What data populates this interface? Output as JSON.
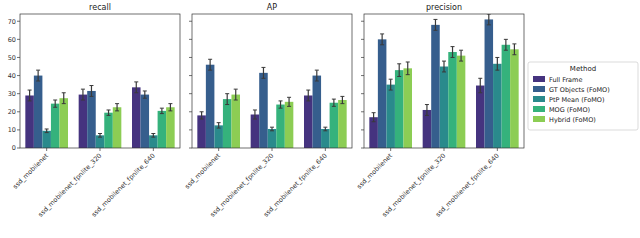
{
  "chart_data": [
    {
      "type": "bar",
      "title": "recall",
      "categories": [
        "ssd_mobilenet",
        "ssd_mobilenet_fpnlite_320",
        "ssd_mobilenet_fpnlite_640"
      ],
      "series": [
        {
          "name": "Full Frame",
          "color": "#45337f",
          "values": [
            29,
            29.5,
            33.5
          ],
          "errors": [
            3,
            3,
            3
          ]
        },
        {
          "name": "GT Objects (FoMO)",
          "color": "#365e8d",
          "values": [
            40,
            31.5,
            29.5
          ],
          "errors": [
            3,
            3,
            2
          ]
        },
        {
          "name": "PtP Mean (FoMO)",
          "color": "#2a8a8c",
          "values": [
            9.5,
            7,
            7
          ],
          "errors": [
            1,
            1,
            1
          ]
        },
        {
          "name": "MOG (FoMO)",
          "color": "#35b27c",
          "values": [
            24.5,
            19.5,
            20.5
          ],
          "errors": [
            2,
            1.5,
            1.5
          ]
        },
        {
          "name": "Hybrid (FoMO)",
          "color": "#8ccd54",
          "values": [
            27.5,
            22.5,
            22.5
          ],
          "errors": [
            3,
            2,
            2
          ]
        }
      ],
      "ylim": [
        0,
        74
      ],
      "yticks": [
        0,
        10,
        20,
        30,
        40,
        50,
        60,
        70
      ],
      "grid": false,
      "tick_labels": true
    },
    {
      "type": "bar",
      "title": "AP",
      "categories": [
        "ssd_mobilenet",
        "ssd_mobilenet_fpnlite_320",
        "ssd_mobilenet_fpnlite_640"
      ],
      "series": [
        {
          "name": "Full Frame",
          "color": "#45337f",
          "values": [
            18,
            18.5,
            29
          ],
          "errors": [
            2,
            2.5,
            3
          ]
        },
        {
          "name": "GT Objects (FoMO)",
          "color": "#365e8d",
          "values": [
            46,
            41.5,
            40
          ],
          "errors": [
            3,
            3,
            3
          ]
        },
        {
          "name": "PtP Mean (FoMO)",
          "color": "#2a8a8c",
          "values": [
            12.5,
            10.5,
            10.5
          ],
          "errors": [
            1.5,
            1,
            1
          ]
        },
        {
          "name": "MOG (FoMO)",
          "color": "#35b27c",
          "values": [
            27,
            24,
            25
          ],
          "errors": [
            3,
            2,
            2
          ]
        },
        {
          "name": "Hybrid (FoMO)",
          "color": "#8ccd54",
          "values": [
            29.5,
            25.5,
            26.5
          ],
          "errors": [
            3,
            2.5,
            2
          ]
        }
      ],
      "ylim": [
        0,
        74
      ],
      "yticks": [
        0,
        10,
        20,
        30,
        40,
        50,
        60,
        70
      ],
      "grid": false,
      "tick_labels": "x"
    },
    {
      "type": "bar",
      "title": "precision",
      "legend_title": "Method",
      "categories": [
        "ssd_mobilenet",
        "ssd_mobilenet_fpnlite_320",
        "ssd_mobilenet_fpnlite_640"
      ],
      "series": [
        {
          "name": "Full Frame",
          "color": "#45337f",
          "values": [
            17,
            21,
            34.5
          ],
          "errors": [
            2.5,
            3,
            4
          ]
        },
        {
          "name": "GT Objects (FoMO)",
          "color": "#365e8d",
          "values": [
            60,
            68,
            71
          ],
          "errors": [
            3,
            3,
            3
          ]
        },
        {
          "name": "PtP Mean (FoMO)",
          "color": "#2a8a8c",
          "values": [
            35,
            45,
            46.5
          ],
          "errors": [
            3,
            3,
            3.5
          ]
        },
        {
          "name": "MOG (FoMO)",
          "color": "#35b27c",
          "values": [
            43,
            53,
            57
          ],
          "errors": [
            3.5,
            3,
            3
          ]
        },
        {
          "name": "Hybrid (FoMO)",
          "color": "#8ccd54",
          "values": [
            44,
            51,
            54.5
          ],
          "errors": [
            3.5,
            3,
            3
          ]
        }
      ],
      "ylim": [
        0,
        74
      ],
      "yticks": [
        0,
        10,
        20,
        30,
        40,
        50,
        60,
        70
      ],
      "grid": false,
      "tick_labels": "x",
      "legend": "right"
    }
  ]
}
